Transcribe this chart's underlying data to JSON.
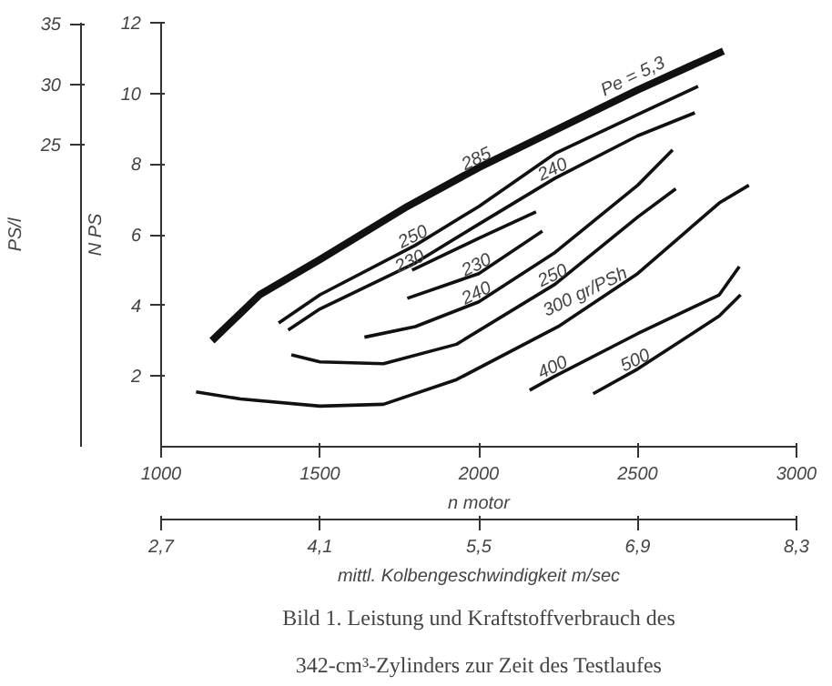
{
  "chart_data": {
    "type": "line",
    "xlabel": "n motor",
    "ylabel": "N PS",
    "y2label": "PS/l",
    "x2label": "mittl. Kolbengeschwindigkeit m/sec",
    "xlim": [
      1000,
      3000
    ],
    "xticks": [
      1000,
      1500,
      2000,
      2500,
      3000
    ],
    "x2lim": [
      2.7,
      8.3
    ],
    "x2ticks": [
      {
        "value": 2.7,
        "label": "2,7"
      },
      {
        "value": 4.1,
        "label": "4,1"
      },
      {
        "value": 5.5,
        "label": "5,5"
      },
      {
        "value": 6.9,
        "label": "6,9"
      },
      {
        "value": 8.3,
        "label": "8,3"
      }
    ],
    "ylim": [
      0,
      12
    ],
    "yticks": [
      2,
      4,
      6,
      8,
      10,
      12
    ],
    "y2lim": [
      0,
      35.1
    ],
    "y2ticks": [
      25,
      30,
      35
    ],
    "grid": false,
    "series": [
      {
        "color": "#111111",
        "x": [
          1160,
          1310,
          1500,
          1775,
          2000,
          2250,
          2500,
          2770
        ],
        "values": [
          3.0,
          4.3,
          5.3,
          6.8,
          7.9,
          9.0,
          10.1,
          11.2
        ]
      },
      {
        "color": "#111111",
        "x": [
          1370,
          1500,
          1800,
          2000,
          2240,
          2500,
          2690
        ],
        "values": [
          3.5,
          4.3,
          5.7,
          6.8,
          8.3,
          9.4,
          10.2
        ]
      },
      {
        "color": "#111111",
        "x": [
          1400,
          1500,
          1800,
          2000,
          2240,
          2500,
          2680
        ],
        "values": [
          3.3,
          3.9,
          5.2,
          6.3,
          7.6,
          8.8,
          9.45
        ]
      },
      {
        "color": "#111111",
        "x": [
          1790,
          2000,
          2180
        ],
        "values": [
          5.0,
          5.9,
          6.65
        ]
      },
      {
        "color": "#111111",
        "x": [
          1775,
          2000,
          2200
        ],
        "values": [
          4.2,
          4.9,
          6.1
        ]
      },
      {
        "color": "#111111",
        "x": [
          1640,
          1800,
          2000,
          2240,
          2500,
          2610
        ],
        "values": [
          3.1,
          3.4,
          4.1,
          5.5,
          7.4,
          8.4
        ]
      },
      {
        "color": "#111111",
        "x": [
          1410,
          1500,
          1700,
          1930,
          2240,
          2500,
          2620
        ],
        "values": [
          2.6,
          2.4,
          2.35,
          2.9,
          4.6,
          6.5,
          7.3
        ]
      },
      {
        "color": "#111111",
        "x": [
          1110,
          1250,
          1500,
          1700,
          1930,
          2250,
          2500,
          2757,
          2850
        ],
        "values": [
          1.55,
          1.35,
          1.15,
          1.2,
          1.9,
          3.4,
          4.9,
          6.9,
          7.4
        ]
      },
      {
        "color": "#111111",
        "x": [
          2160,
          2240,
          2500,
          2757,
          2820
        ],
        "values": [
          1.6,
          2.0,
          3.2,
          4.3,
          5.1
        ]
      },
      {
        "color": "#111111",
        "x": [
          2360,
          2500,
          2757,
          2824
        ],
        "values": [
          1.5,
          2.2,
          3.7,
          4.3
        ]
      }
    ],
    "annotations": [
      {
        "text": "Pe = 5,3",
        "x": 2500,
        "y": 10.1
      },
      {
        "text": "285",
        "x": 2000,
        "y": 7.9
      },
      {
        "text": "250",
        "x": 1800,
        "y": 5.7
      },
      {
        "text": "240",
        "x": 2240,
        "y": 7.6
      },
      {
        "text": "230",
        "x": 1790,
        "y": 5.0
      },
      {
        "text": "230",
        "x": 2000,
        "y": 4.9
      },
      {
        "text": "240",
        "x": 2000,
        "y": 4.1
      },
      {
        "text": "250",
        "x": 2240,
        "y": 4.6
      },
      {
        "text": "300 gr/PSh",
        "x": 2350,
        "y": 4.0
      },
      {
        "text": "400",
        "x": 2240,
        "y": 2.0
      },
      {
        "text": "500",
        "x": 2500,
        "y": 2.2
      },
      "Bild 1. Leistung und Kraftstoffverbrauch des\n342-cm³-Zylinders zur Zeit des Testlaufes"
    ]
  }
}
